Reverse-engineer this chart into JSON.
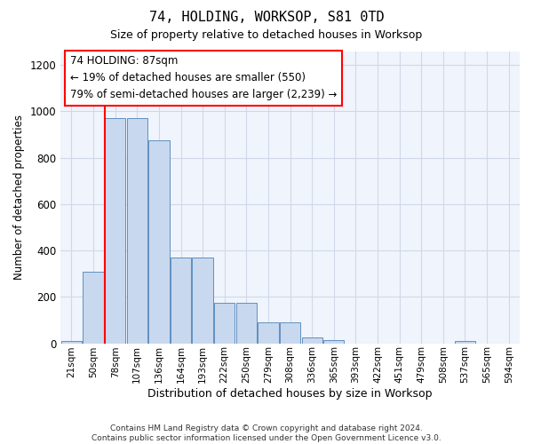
{
  "title1": "74, HOLDING, WORKSOP, S81 0TD",
  "title2": "Size of property relative to detached houses in Worksop",
  "xlabel": "Distribution of detached houses by size in Worksop",
  "ylabel": "Number of detached properties",
  "bins": [
    "21sqm",
    "50sqm",
    "78sqm",
    "107sqm",
    "136sqm",
    "164sqm",
    "193sqm",
    "222sqm",
    "250sqm",
    "279sqm",
    "308sqm",
    "336sqm",
    "365sqm",
    "393sqm",
    "422sqm",
    "451sqm",
    "479sqm",
    "508sqm",
    "537sqm",
    "565sqm",
    "594sqm"
  ],
  "values": [
    10,
    310,
    970,
    970,
    875,
    370,
    370,
    175,
    175,
    90,
    90,
    25,
    15,
    0,
    0,
    0,
    0,
    0,
    10,
    0,
    0
  ],
  "bar_color": "#c8d8ee",
  "bar_edge_color": "#6090c0",
  "vline_x_index": 2,
  "vline_color": "red",
  "annotation_text": "74 HOLDING: 87sqm\n← 19% of detached houses are smaller (550)\n79% of semi-detached houses are larger (2,239) →",
  "annotation_box_color": "white",
  "annotation_box_edge": "red",
  "ylim": [
    0,
    1260
  ],
  "yticks": [
    0,
    200,
    400,
    600,
    800,
    1000,
    1200
  ],
  "grid_color": "#d0d8e8",
  "footer": "Contains HM Land Registry data © Crown copyright and database right 2024.\nContains public sector information licensed under the Open Government Licence v3.0.",
  "bg_color": "#ffffff",
  "plot_bg_color": "#f0f4fc"
}
